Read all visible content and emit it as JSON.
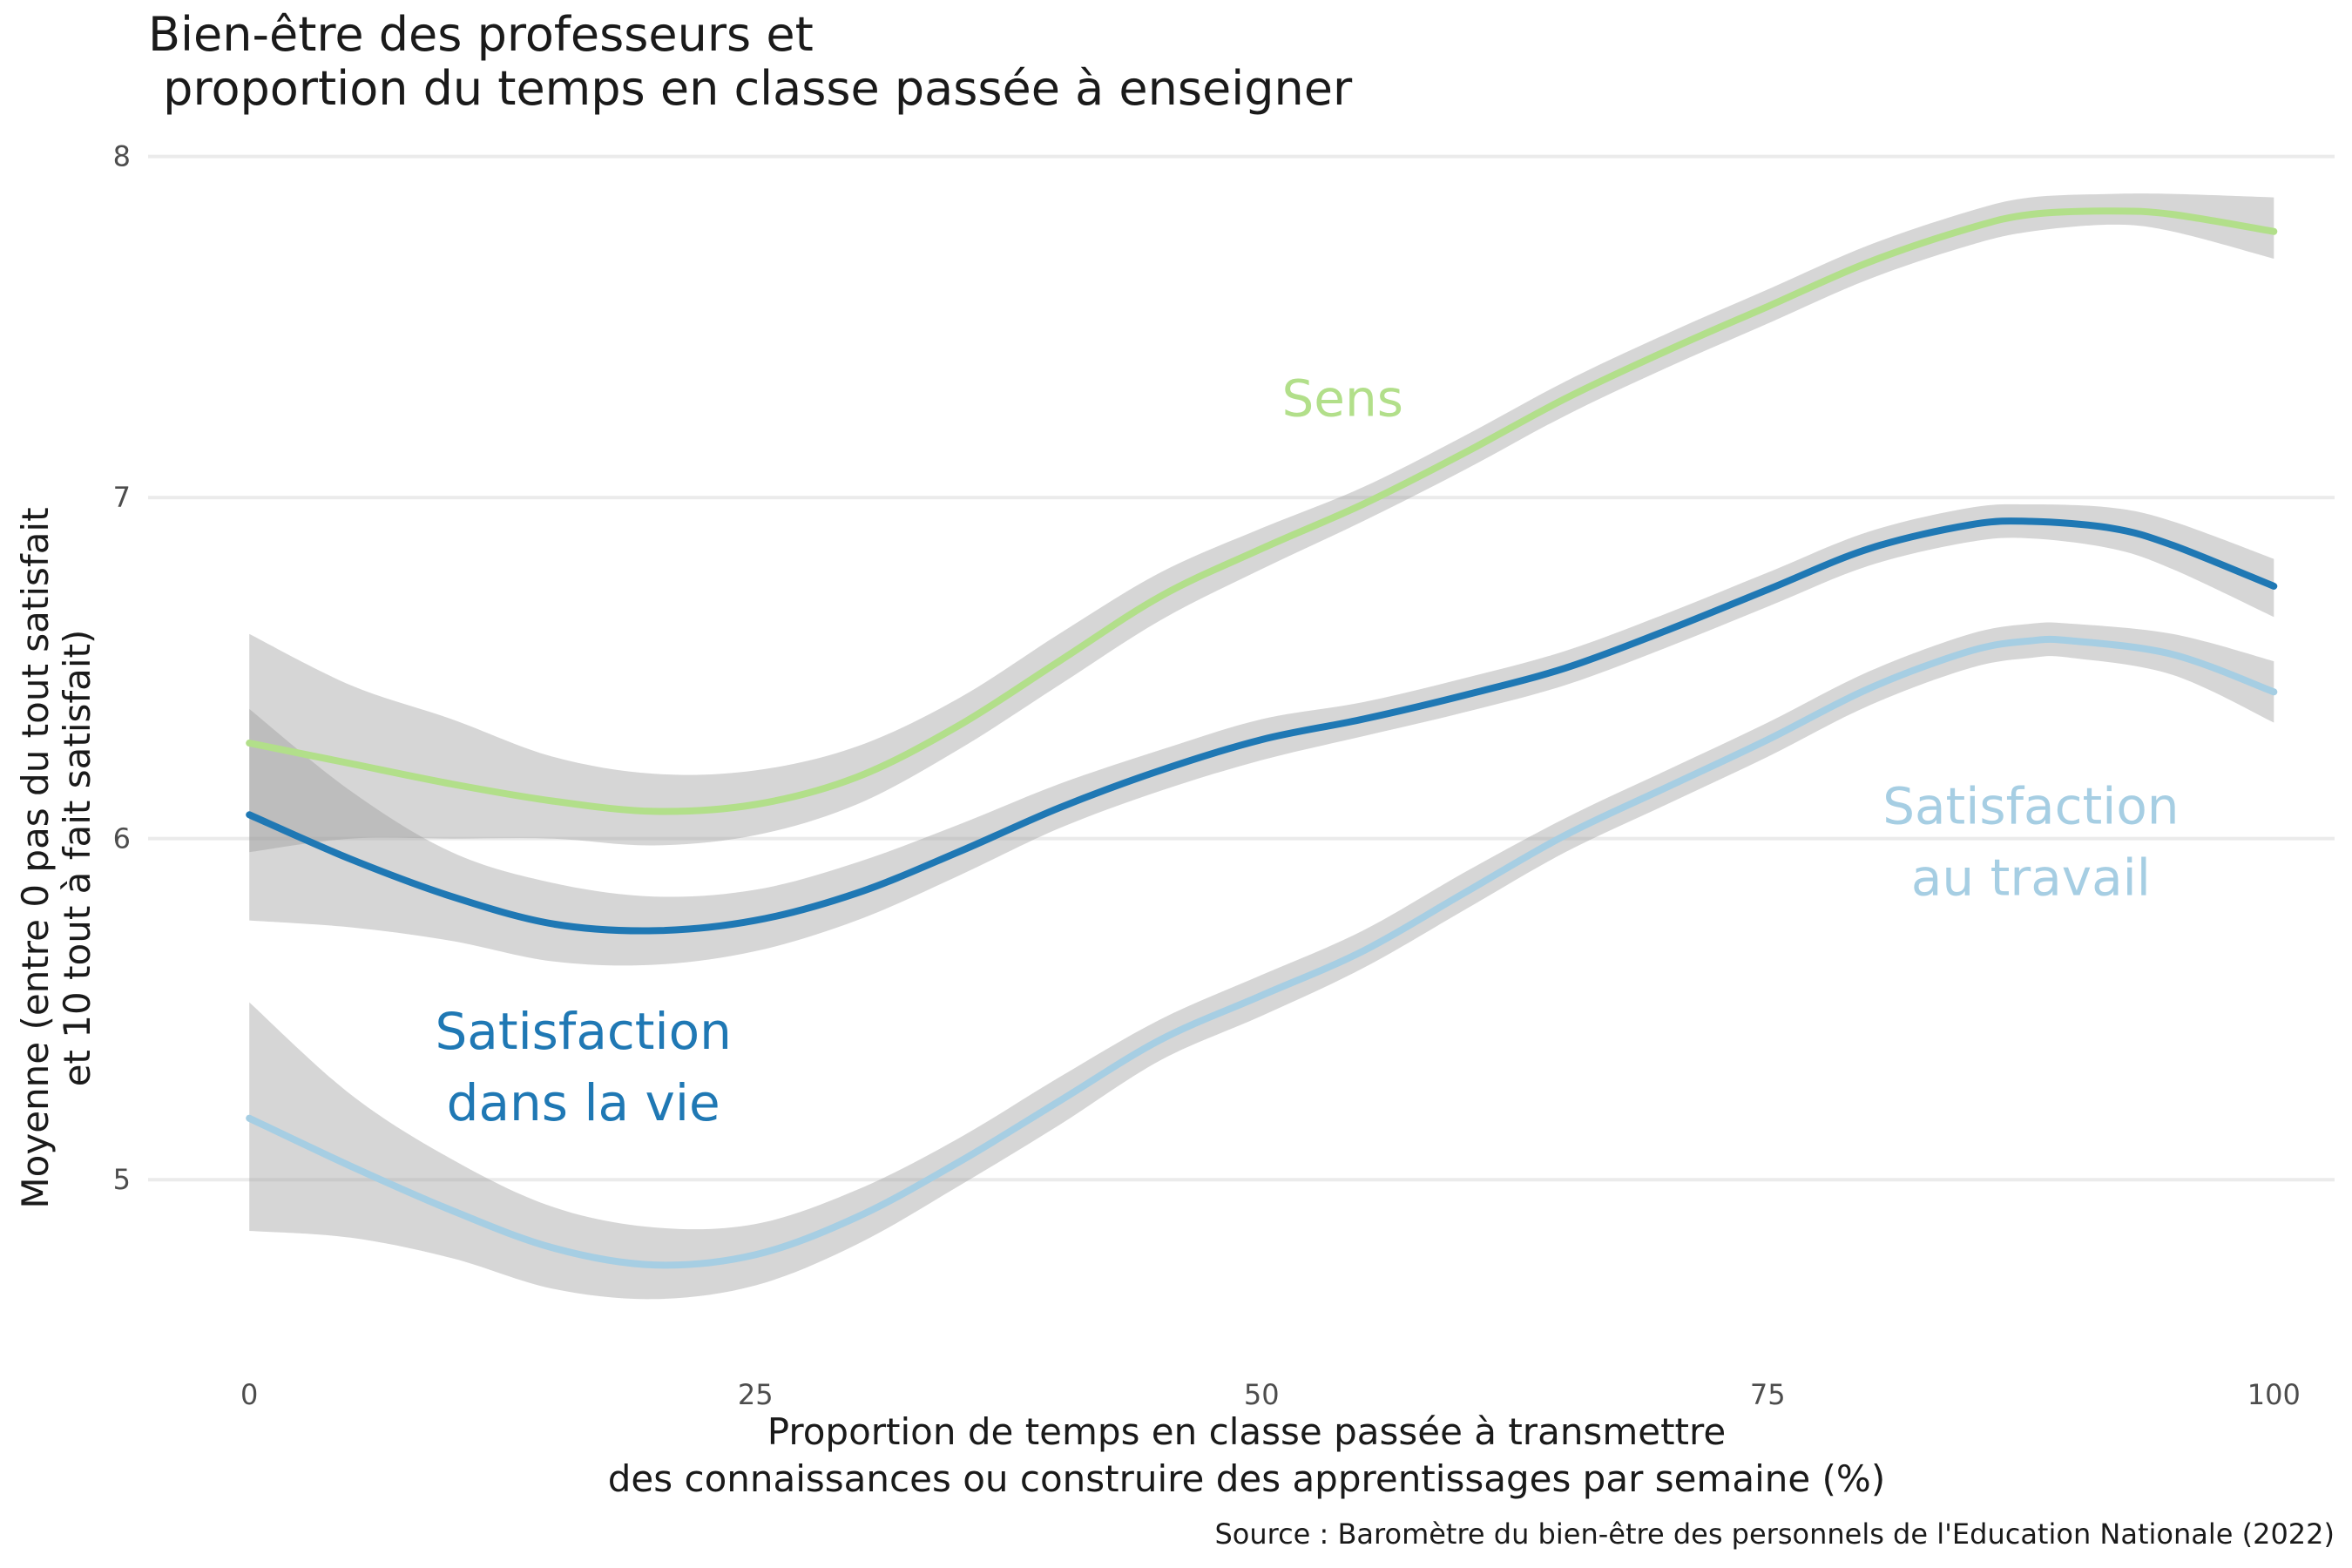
{
  "chart_data": {
    "type": "line",
    "title_lines": [
      "Bien-être des professeurs et",
      " proportion du temps en classe passée à enseigner"
    ],
    "xlabel_lines": [
      "Proportion de temps en classe passée à transmettre",
      "des connaissances ou construire des apprentissages par semaine (%)"
    ],
    "ylabel_lines": [
      "Moyenne (entre 0 pas du tout satisfait",
      "et 10 tout à fait satisfait)"
    ],
    "caption": "Source : Baromètre du bien-être des personnels de l'Education Nationale (2022)",
    "xlim": [
      -5,
      103
    ],
    "ylim": [
      4.5,
      8.05
    ],
    "x_ticks": [
      0,
      25,
      50,
      75,
      100
    ],
    "x_tick_labels": [
      "0",
      "25",
      "50",
      "75",
      "100"
    ],
    "y_ticks": [
      5,
      6,
      7,
      8
    ],
    "y_tick_labels": [
      "5",
      "6",
      "7",
      "8"
    ],
    "grid": true,
    "ribbon_color": "#999999",
    "series": [
      {
        "name": "Sens",
        "label_lines": [
          "Sens"
        ],
        "color": "#b2df8a",
        "label_x": 54,
        "label_y": 7.29,
        "x": [
          0,
          5,
          10,
          15,
          20,
          25,
          30,
          35,
          40,
          45,
          50,
          55,
          60,
          65,
          70,
          75,
          80,
          85,
          88,
          92,
          95,
          100
        ],
        "y": [
          6.28,
          6.22,
          6.16,
          6.11,
          6.08,
          6.1,
          6.18,
          6.33,
          6.52,
          6.71,
          6.85,
          6.98,
          7.13,
          7.29,
          7.43,
          7.56,
          7.69,
          7.79,
          7.83,
          7.84,
          7.83,
          7.78
        ],
        "lower": [
          5.96,
          6.0,
          6.0,
          6.0,
          5.98,
          6.01,
          6.1,
          6.26,
          6.45,
          6.64,
          6.79,
          6.93,
          7.08,
          7.24,
          7.38,
          7.51,
          7.64,
          7.74,
          7.78,
          7.8,
          7.78,
          7.7
        ],
        "upper": [
          6.6,
          6.45,
          6.35,
          6.24,
          6.19,
          6.2,
          6.27,
          6.41,
          6.6,
          6.78,
          6.91,
          7.03,
          7.18,
          7.34,
          7.48,
          7.61,
          7.74,
          7.84,
          7.88,
          7.89,
          7.89,
          7.88
        ]
      },
      {
        "name": "Satisfaction dans la vie",
        "label_lines": [
          "Satisfaction",
          "dans la vie"
        ],
        "color": "#1f78b4",
        "label_x": 16.5,
        "label_y": 5.33,
        "x": [
          0,
          5,
          10,
          15,
          20,
          25,
          30,
          35,
          40,
          45,
          50,
          55,
          60,
          65,
          70,
          75,
          80,
          85,
          88,
          92,
          95,
          100
        ],
        "y": [
          6.07,
          5.94,
          5.83,
          5.75,
          5.73,
          5.76,
          5.84,
          5.96,
          6.09,
          6.2,
          6.29,
          6.35,
          6.42,
          6.5,
          6.61,
          6.73,
          6.85,
          6.92,
          6.93,
          6.91,
          6.86,
          6.74
        ],
        "lower": [
          5.76,
          5.74,
          5.7,
          5.64,
          5.63,
          5.67,
          5.76,
          5.89,
          6.03,
          6.14,
          6.23,
          6.3,
          6.37,
          6.45,
          6.56,
          6.68,
          6.8,
          6.87,
          6.88,
          6.85,
          6.79,
          6.65
        ],
        "upper": [
          6.38,
          6.14,
          5.96,
          5.87,
          5.83,
          5.85,
          5.93,
          6.04,
          6.16,
          6.26,
          6.35,
          6.4,
          6.47,
          6.55,
          6.66,
          6.78,
          6.9,
          6.97,
          6.98,
          6.97,
          6.93,
          6.82
        ]
      },
      {
        "name": "Satisfaction au travail",
        "label_lines": [
          "Satisfaction",
          "au travail"
        ],
        "color": "#a6cee3",
        "label_x": 88,
        "label_y": 5.99,
        "x": [
          0,
          5,
          10,
          15,
          20,
          25,
          30,
          35,
          40,
          45,
          50,
          55,
          60,
          65,
          70,
          75,
          80,
          85,
          88,
          90,
          95,
          100
        ],
        "y": [
          5.18,
          5.04,
          4.91,
          4.8,
          4.75,
          4.78,
          4.89,
          5.05,
          5.23,
          5.41,
          5.54,
          5.67,
          5.84,
          6.01,
          6.15,
          6.29,
          6.44,
          6.55,
          6.58,
          6.58,
          6.54,
          6.43
        ],
        "lower": [
          4.85,
          4.83,
          4.77,
          4.68,
          4.65,
          4.69,
          4.81,
          4.98,
          5.16,
          5.35,
          5.48,
          5.62,
          5.79,
          5.96,
          6.1,
          6.24,
          6.39,
          6.5,
          6.53,
          6.53,
          6.48,
          6.34
        ],
        "upper": [
          5.52,
          5.25,
          5.06,
          4.92,
          4.86,
          4.87,
          4.97,
          5.12,
          5.3,
          5.47,
          5.6,
          5.73,
          5.9,
          6.06,
          6.2,
          6.34,
          6.49,
          6.6,
          6.63,
          6.63,
          6.6,
          6.52
        ]
      }
    ]
  }
}
